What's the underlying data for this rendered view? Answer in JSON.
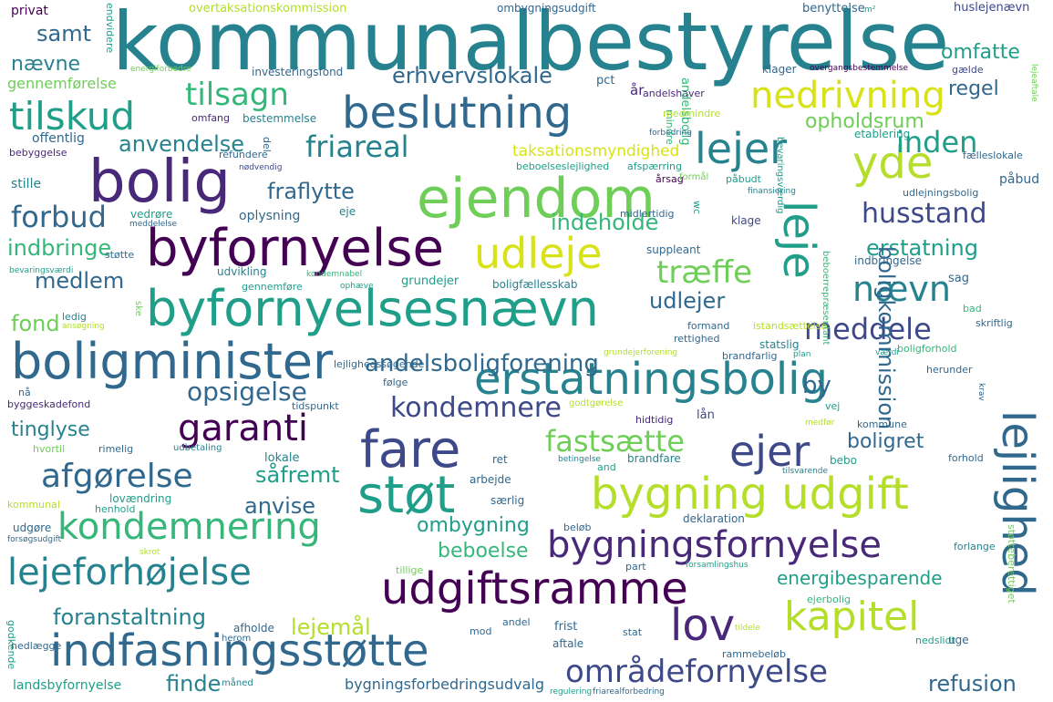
{
  "palette": {
    "c1": "#440154",
    "c2": "#482878",
    "c3": "#3e4989",
    "c4": "#31688e",
    "c5": "#26828e",
    "c6": "#1f9e89",
    "c7": "#35b779",
    "c8": "#6ece58",
    "c9": "#b5de2b",
    "c10": "#d8e219"
  },
  "words": [
    {
      "text": "kommunalbestyrelse",
      "color": "c5"
    },
    {
      "text": "ejendom",
      "color": "c8"
    },
    {
      "text": "bolig",
      "color": "c2"
    },
    {
      "text": "byfornyelse",
      "color": "c1"
    },
    {
      "text": "byfornyelsesnævn",
      "color": "c6"
    },
    {
      "text": "boligminister",
      "color": "c4"
    },
    {
      "text": "erstatningsbolig",
      "color": "c5"
    },
    {
      "text": "fare",
      "color": "c3"
    },
    {
      "text": "støt",
      "color": "c6"
    },
    {
      "text": "bygning udgift",
      "color": "c9"
    },
    {
      "text": "kondemnering",
      "color": "c7"
    },
    {
      "text": "bygningsfornyelse",
      "color": "c2"
    },
    {
      "text": "udgiftsramme",
      "color": "c1"
    },
    {
      "text": "indfasningsstøtte",
      "color": "c4"
    },
    {
      "text": "lov",
      "color": "c2"
    },
    {
      "text": "kapitel",
      "color": "c9"
    },
    {
      "text": "lejeforhøjelse",
      "color": "c5"
    },
    {
      "text": "beslutning",
      "color": "c4"
    },
    {
      "text": "tilskud",
      "color": "c6"
    },
    {
      "text": "tilsagn",
      "color": "c7"
    },
    {
      "text": "nedrivning",
      "color": "c10"
    },
    {
      "text": "lejer",
      "color": "c5"
    },
    {
      "text": "yde",
      "color": "c9"
    },
    {
      "text": "udleje",
      "color": "c10"
    },
    {
      "text": "leje",
      "color": "c6"
    },
    {
      "text": "lejlighed",
      "color": "c4"
    },
    {
      "text": "garanti",
      "color": "c1"
    },
    {
      "text": "ejer",
      "color": "c3"
    },
    {
      "text": "fastsætte",
      "color": "c8"
    },
    {
      "text": "afgørelse",
      "color": "c4"
    },
    {
      "text": "områdefornyelse",
      "color": "c3"
    },
    {
      "text": "friareal",
      "color": "c5"
    },
    {
      "text": "forbud",
      "color": "c4"
    },
    {
      "text": "husstand",
      "color": "c3"
    },
    {
      "text": "inden",
      "color": "c6"
    },
    {
      "text": "nævn",
      "color": "c5"
    },
    {
      "text": "meddele",
      "color": "c3"
    },
    {
      "text": "træffe",
      "color": "c8"
    },
    {
      "text": "kondemnere",
      "color": "c3"
    },
    {
      "text": "opsigelse",
      "color": "c4"
    },
    {
      "text": "andelsboligforening",
      "color": "c4"
    },
    {
      "text": "erhvervslokale",
      "color": "c4"
    },
    {
      "text": "anvendelse",
      "color": "c5"
    },
    {
      "text": "fraflytte",
      "color": "c4"
    },
    {
      "text": "indbringe",
      "color": "c7"
    },
    {
      "text": "medlem",
      "color": "c4"
    },
    {
      "text": "omfatte",
      "color": "c6"
    },
    {
      "text": "opholdsrum",
      "color": "c8"
    },
    {
      "text": "erstatning",
      "color": "c6"
    },
    {
      "text": "udlejer",
      "color": "c4"
    },
    {
      "text": "indeholde",
      "color": "c7"
    },
    {
      "text": "boligkommission",
      "color": "c4"
    },
    {
      "text": "anvise",
      "color": "c4"
    },
    {
      "text": "såfremt",
      "color": "c6"
    },
    {
      "text": "ombygning",
      "color": "c6"
    },
    {
      "text": "beboelse",
      "color": "c7"
    },
    {
      "text": "foranstaltning",
      "color": "c5"
    },
    {
      "text": "lejemål",
      "color": "c9"
    },
    {
      "text": "finde",
      "color": "c5"
    },
    {
      "text": "refusion",
      "color": "c4"
    },
    {
      "text": "energibesparende",
      "color": "c6"
    },
    {
      "text": "boligret",
      "color": "c4"
    },
    {
      "text": "tinglyse",
      "color": "c5"
    },
    {
      "text": "fond",
      "color": "c8"
    },
    {
      "text": "samt",
      "color": "c4"
    },
    {
      "text": "nævne",
      "color": "c5"
    },
    {
      "text": "regel",
      "color": "c4"
    },
    {
      "text": "by",
      "color": "c4"
    },
    {
      "text": "landsbyfornyelse",
      "color": "c6"
    },
    {
      "text": "bygningsforbedringsudvalg",
      "color": "c4"
    },
    {
      "text": "gennemførelse",
      "color": "c8"
    },
    {
      "text": "investeringsfond",
      "color": "c4"
    },
    {
      "text": "pct",
      "color": "c4"
    },
    {
      "text": "år",
      "color": "c2"
    },
    {
      "text": "andelshaver",
      "color": "c2"
    },
    {
      "text": "andelsbolig",
      "color": "c7"
    },
    {
      "text": "klager",
      "color": "c4"
    },
    {
      "text": "overgangsbestemmelse",
      "color": "c1"
    },
    {
      "text": "lejeaftale",
      "color": "c8"
    },
    {
      "text": "gælde",
      "color": "c3"
    },
    {
      "text": "huslejenævn",
      "color": "c3"
    },
    {
      "text": "benyttelse",
      "color": "c4"
    },
    {
      "text": "m²",
      "color": "c6"
    },
    {
      "text": "ombygningsudgift",
      "color": "c4"
    },
    {
      "text": "overtaksationskommission",
      "color": "c9"
    },
    {
      "text": "privat",
      "color": "c1"
    },
    {
      "text": "endvidere",
      "color": "c6"
    },
    {
      "text": "energiforbedre",
      "color": "c8"
    },
    {
      "text": "offentlig",
      "color": "c4"
    },
    {
      "text": "omfang",
      "color": "c2"
    },
    {
      "text": "bestemmelse",
      "color": "c5"
    },
    {
      "text": "bebyggelse",
      "color": "c2"
    },
    {
      "text": "refundere",
      "color": "c4"
    },
    {
      "text": "taksationsmyndighed",
      "color": "c10"
    },
    {
      "text": "beboelseslejlighed",
      "color": "c6"
    },
    {
      "text": "afspærring",
      "color": "c6"
    },
    {
      "text": "forbedring",
      "color": "c4"
    },
    {
      "text": "mindre",
      "color": "c7"
    },
    {
      "text": "medmindre",
      "color": "c9"
    },
    {
      "text": "etablering",
      "color": "c6"
    },
    {
      "text": "fælleslokale",
      "color": "c4"
    },
    {
      "text": "påbud",
      "color": "c4"
    },
    {
      "text": "påbudt",
      "color": "c6"
    },
    {
      "text": "årsag",
      "color": "c1"
    },
    {
      "text": "formål",
      "color": "c8"
    },
    {
      "text": "bevaringsværdig",
      "color": "c6"
    },
    {
      "text": "finansiering",
      "color": "c5"
    },
    {
      "text": "udlejningsbolig",
      "color": "c4"
    },
    {
      "text": "stille",
      "color": "c5"
    },
    {
      "text": "nødvendig",
      "color": "c3"
    },
    {
      "text": "del",
      "color": "c4"
    },
    {
      "text": "vedrøre",
      "color": "c6"
    },
    {
      "text": "oplysning",
      "color": "c4"
    },
    {
      "text": "eje",
      "color": "c5"
    },
    {
      "text": "midlertidig",
      "color": "c4"
    },
    {
      "text": "wc",
      "color": "c6"
    },
    {
      "text": "klage",
      "color": "c3"
    },
    {
      "text": "suppleant",
      "color": "c4"
    },
    {
      "text": "meddelelse",
      "color": "c4"
    },
    {
      "text": "støtte",
      "color": "c4"
    },
    {
      "text": "udvikling",
      "color": "c5"
    },
    {
      "text": "kondemnabel",
      "color": "c7"
    },
    {
      "text": "sag",
      "color": "c4"
    },
    {
      "text": "indbringelse",
      "color": "c4"
    },
    {
      "text": "beboerrepræsentant",
      "color": "c7"
    },
    {
      "text": "bevaringsværdi",
      "color": "c6"
    },
    {
      "text": "gennemføre",
      "color": "c6"
    },
    {
      "text": "grundejer",
      "color": "c6"
    },
    {
      "text": "boligfællesskab",
      "color": "c5"
    },
    {
      "text": "ophæve",
      "color": "c6"
    },
    {
      "text": "ske",
      "color": "c8"
    },
    {
      "text": "ledig",
      "color": "c5"
    },
    {
      "text": "ansøgning",
      "color": "c9"
    },
    {
      "text": "formand",
      "color": "c4"
    },
    {
      "text": "istandsættelse",
      "color": "c9"
    },
    {
      "text": "bad",
      "color": "c7"
    },
    {
      "text": "skriftlig",
      "color": "c4"
    },
    {
      "text": "rettighed",
      "color": "c4"
    },
    {
      "text": "statslig",
      "color": "c5"
    },
    {
      "text": "brandfarlig",
      "color": "c4"
    },
    {
      "text": "plan",
      "color": "c6"
    },
    {
      "text": "værdi",
      "color": "c6"
    },
    {
      "text": "boligforhold",
      "color": "c7"
    },
    {
      "text": "grundejerforening",
      "color": "c9"
    },
    {
      "text": "lejlighedssøgende",
      "color": "c4"
    },
    {
      "text": "herunder",
      "color": "c4"
    },
    {
      "text": "krav",
      "color": "c4"
    },
    {
      "text": "følge",
      "color": "c4"
    },
    {
      "text": "nå",
      "color": "c4"
    },
    {
      "text": "byggeskadefond",
      "color": "c2"
    },
    {
      "text": "tidspunkt",
      "color": "c4"
    },
    {
      "text": "vej",
      "color": "c6"
    },
    {
      "text": "godtgørelse",
      "color": "c9"
    },
    {
      "text": "lån",
      "color": "c3"
    },
    {
      "text": "hidtidig",
      "color": "c2"
    },
    {
      "text": "medfør",
      "color": "c9"
    },
    {
      "text": "kommune",
      "color": "c4"
    },
    {
      "text": "hvortil",
      "color": "c8"
    },
    {
      "text": "rimelig",
      "color": "c4"
    },
    {
      "text": "udbetaling",
      "color": "c5"
    },
    {
      "text": "lokale",
      "color": "c5"
    },
    {
      "text": "ret",
      "color": "c4"
    },
    {
      "text": "betingelse",
      "color": "c5"
    },
    {
      "text": "and",
      "color": "c6"
    },
    {
      "text": "brandfare",
      "color": "c5"
    },
    {
      "text": "bebo",
      "color": "c6"
    },
    {
      "text": "forhold",
      "color": "c4"
    },
    {
      "text": "arbejde",
      "color": "c4"
    },
    {
      "text": "tilsvarende",
      "color": "c5"
    },
    {
      "text": "særlig",
      "color": "c4"
    },
    {
      "text": "lovændring",
      "color": "c6"
    },
    {
      "text": "kommunal",
      "color": "c9"
    },
    {
      "text": "henhold",
      "color": "c6"
    },
    {
      "text": "udgøre",
      "color": "c4"
    },
    {
      "text": "forsøgsudgift",
      "color": "c4"
    },
    {
      "text": "beløb",
      "color": "c4"
    },
    {
      "text": "deklaration",
      "color": "c4"
    },
    {
      "text": "forlange",
      "color": "c5"
    },
    {
      "text": "støtteberettiget",
      "color": "c8"
    },
    {
      "text": "skrot",
      "color": "c9"
    },
    {
      "text": "tillige",
      "color": "c8"
    },
    {
      "text": "part",
      "color": "c4"
    },
    {
      "text": "forsamlingshus",
      "color": "c6"
    },
    {
      "text": "ejerbolig",
      "color": "c7"
    },
    {
      "text": "godkende",
      "color": "c6"
    },
    {
      "text": "afholde",
      "color": "c4"
    },
    {
      "text": "mod",
      "color": "c4"
    },
    {
      "text": "andel",
      "color": "c4"
    },
    {
      "text": "frist",
      "color": "c4"
    },
    {
      "text": "stat",
      "color": "c4"
    },
    {
      "text": "tildele",
      "color": "c9"
    },
    {
      "text": "nedslidt",
      "color": "c6"
    },
    {
      "text": "uge",
      "color": "c4"
    },
    {
      "text": "nedlægge",
      "color": "c4"
    },
    {
      "text": "herom",
      "color": "c4"
    },
    {
      "text": "aftale",
      "color": "c4"
    },
    {
      "text": "rammebeløb",
      "color": "c4"
    },
    {
      "text": "måned",
      "color": "c5"
    },
    {
      "text": "regulering",
      "color": "c6"
    },
    {
      "text": "friarealforbedring",
      "color": "c4"
    }
  ]
}
